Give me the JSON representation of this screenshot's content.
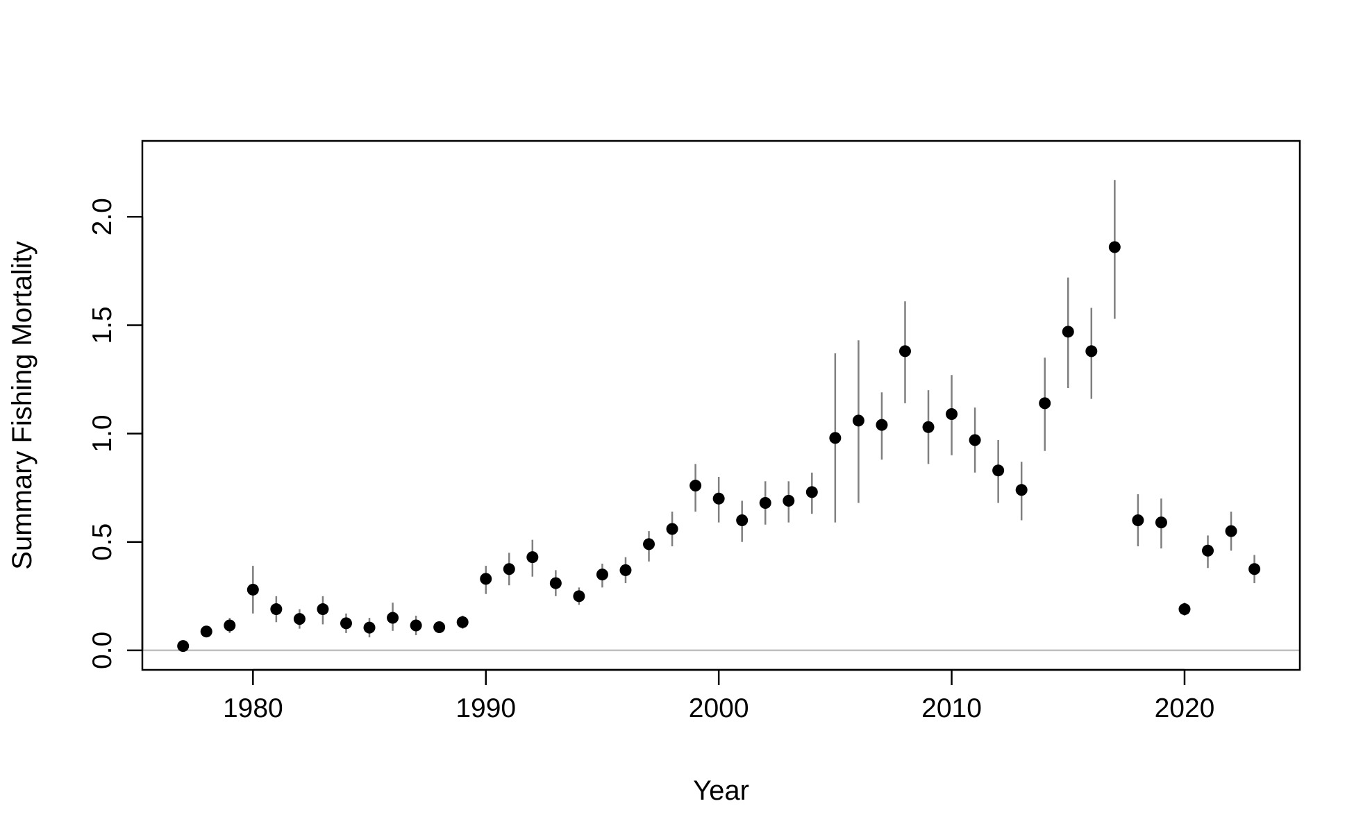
{
  "chart_data": {
    "type": "scatter",
    "title": "",
    "xlabel": "Year",
    "ylabel": "Summary Fishing Mortality",
    "xlim": [
      1975.25,
      2024.95
    ],
    "ylim": [
      -0.09,
      2.35
    ],
    "x_ticks": [
      1980,
      1990,
      2000,
      2010,
      2020
    ],
    "y_ticks": [
      0.0,
      0.5,
      1.0,
      1.5,
      2.0
    ],
    "x_tick_labels": [
      "1980",
      "1990",
      "2000",
      "2010",
      "2020"
    ],
    "y_tick_labels": [
      "0.0",
      "0.5",
      "1.0",
      "1.5",
      "2.0"
    ],
    "reference_line": 0,
    "grid": false,
    "colors": {
      "points": "#000000",
      "error_bars": "#7f7f7f",
      "reference_line": "#bebebe",
      "frame": "#000000"
    },
    "series": [
      {
        "x": [
          1977,
          1978,
          1979,
          1980,
          1981,
          1982,
          1983,
          1984,
          1985,
          1986,
          1987,
          1988,
          1989,
          1990,
          1991,
          1992,
          1993,
          1994,
          1995,
          1996,
          1997,
          1998,
          1999,
          2000,
          2001,
          2002,
          2003,
          2004,
          2005,
          2006,
          2007,
          2008,
          2009,
          2010,
          2011,
          2012,
          2013,
          2014,
          2015,
          2016,
          2017,
          2018,
          2019,
          2020,
          2021,
          2022,
          2023
        ],
        "y": [
          0.02,
          0.087,
          0.115,
          0.28,
          0.19,
          0.145,
          0.19,
          0.125,
          0.105,
          0.15,
          0.115,
          0.107,
          0.13,
          0.33,
          0.375,
          0.43,
          0.31,
          0.25,
          0.35,
          0.37,
          0.49,
          0.56,
          0.76,
          0.7,
          0.6,
          0.68,
          0.69,
          0.73,
          0.98,
          1.06,
          1.04,
          1.38,
          1.03,
          1.09,
          0.97,
          0.83,
          0.74,
          1.14,
          1.47,
          1.38,
          1.86,
          0.6,
          0.59,
          0.19,
          0.46,
          0.55,
          0.375
        ],
        "lower": [
          0.01,
          0.07,
          0.08,
          0.17,
          0.13,
          0.1,
          0.12,
          0.08,
          0.06,
          0.09,
          0.07,
          0.09,
          0.1,
          0.26,
          0.3,
          0.34,
          0.25,
          0.21,
          0.29,
          0.31,
          0.41,
          0.48,
          0.64,
          0.59,
          0.5,
          0.58,
          0.59,
          0.63,
          0.59,
          0.68,
          0.88,
          1.14,
          0.86,
          0.9,
          0.82,
          0.68,
          0.6,
          0.92,
          1.21,
          1.16,
          1.53,
          0.48,
          0.47,
          0.16,
          0.38,
          0.46,
          0.31
        ],
        "upper": [
          0.03,
          0.1,
          0.15,
          0.39,
          0.25,
          0.19,
          0.25,
          0.17,
          0.15,
          0.22,
          0.16,
          0.12,
          0.16,
          0.39,
          0.45,
          0.51,
          0.37,
          0.29,
          0.4,
          0.43,
          0.55,
          0.64,
          0.86,
          0.8,
          0.69,
          0.78,
          0.78,
          0.82,
          1.37,
          1.43,
          1.19,
          1.61,
          1.2,
          1.27,
          1.12,
          0.97,
          0.87,
          1.35,
          1.72,
          1.58,
          2.17,
          0.72,
          0.7,
          0.22,
          0.53,
          0.64,
          0.44
        ]
      }
    ]
  }
}
